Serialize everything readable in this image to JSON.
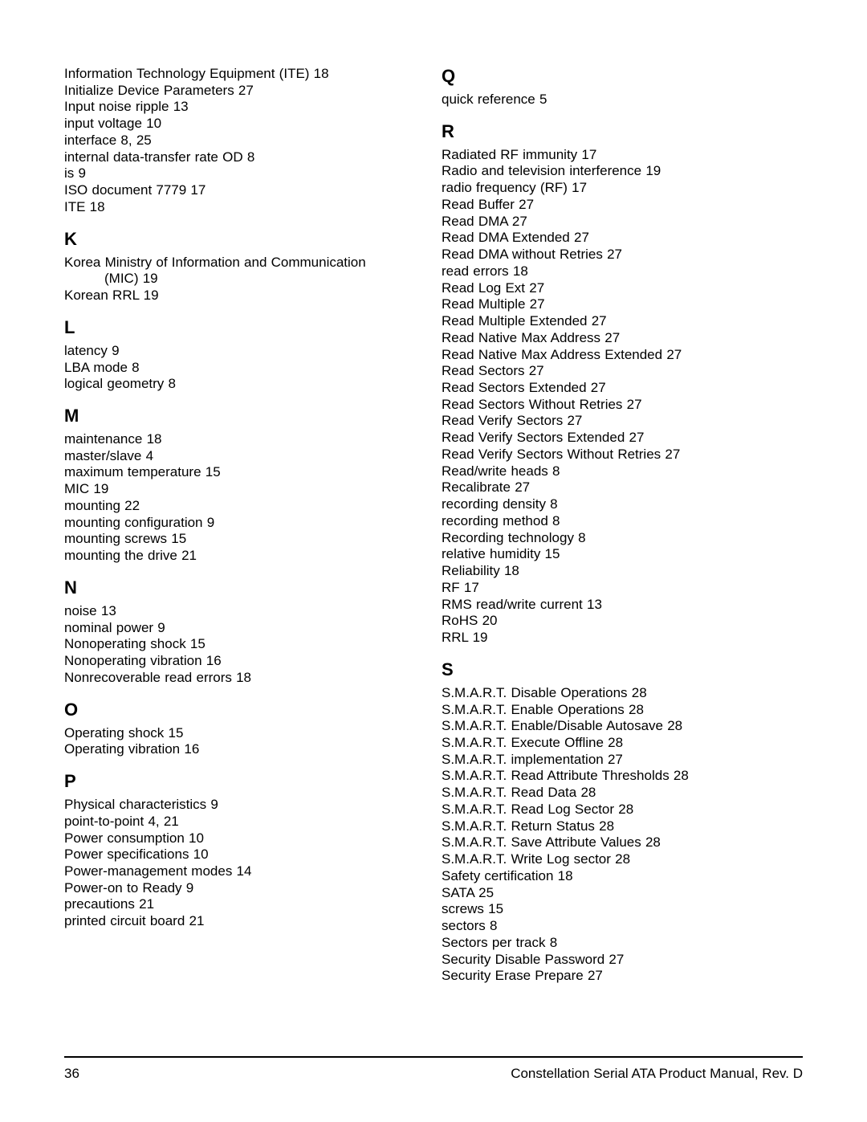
{
  "left": {
    "block_i": [
      {
        "text": "Information Technology Equipment (ITE)",
        "pages": "18"
      },
      {
        "text": "Initialize Device Parameters",
        "pages": "27"
      },
      {
        "text": "Input noise ripple",
        "pages": "13"
      },
      {
        "text": "input voltage",
        "pages": "10"
      },
      {
        "text": "interface",
        "pages": "8,  25"
      },
      {
        "text": "internal data-transfer rate OD",
        "pages": "8"
      },
      {
        "text": "is",
        "pages": "9"
      },
      {
        "text": "ISO document 7779",
        "pages": "17"
      },
      {
        "text": "ITE",
        "pages": "18"
      }
    ],
    "K": {
      "letter": "K",
      "entries": [
        {
          "text": "Korea  Ministry  of  Information  and  Communication"
        },
        {
          "text": "(MIC)   19",
          "hanging": true
        },
        {
          "text": "Korean RRL",
          "pages": "19"
        }
      ]
    },
    "L": {
      "letter": "L",
      "entries": [
        {
          "text": "latency",
          "pages": "9"
        },
        {
          "text": "LBA mode",
          "pages": "8"
        },
        {
          "text": "logical geometry",
          "pages": "8"
        }
      ]
    },
    "M": {
      "letter": "M",
      "entries": [
        {
          "text": "maintenance",
          "pages": "18"
        },
        {
          "text": "master/slave",
          "pages": "4"
        },
        {
          "text": "maximum temperature",
          "pages": "15"
        },
        {
          "text": "MIC",
          "pages": "19"
        },
        {
          "text": "mounting",
          "pages": "22"
        },
        {
          "text": "mounting configuration",
          "pages": "9"
        },
        {
          "text": "mounting screws",
          "pages": "15"
        },
        {
          "text": "mounting the drive",
          "pages": "21"
        }
      ]
    },
    "N": {
      "letter": "N",
      "entries": [
        {
          "text": "noise",
          "pages": "13"
        },
        {
          "text": "nominal power",
          "pages": "9"
        },
        {
          "text": "Nonoperating shock",
          "pages": "15"
        },
        {
          "text": "Nonoperating vibration",
          "pages": "16"
        },
        {
          "text": "Nonrecoverable read errors",
          "pages": "18"
        }
      ]
    },
    "O": {
      "letter": "O",
      "entries": [
        {
          "text": "Operating shock",
          "pages": "15"
        },
        {
          "text": "Operating vibration",
          "pages": "16"
        }
      ]
    },
    "P": {
      "letter": "P",
      "entries": [
        {
          "text": "Physical characteristics",
          "pages": "9"
        },
        {
          "text": "point-to-point",
          "pages": "4,  21"
        },
        {
          "text": "Power consumption",
          "pages": "10"
        },
        {
          "text": "Power specifications",
          "pages": "10"
        },
        {
          "text": "Power-management modes",
          "pages": "14"
        },
        {
          "text": "Power-on to Ready",
          "pages": "9"
        },
        {
          "text": "precautions",
          "pages": "21"
        },
        {
          "text": "printed circuit board",
          "pages": "21"
        }
      ]
    }
  },
  "right": {
    "Q": {
      "letter": "Q",
      "entries": [
        {
          "text": "quick reference",
          "pages": "5"
        }
      ]
    },
    "R": {
      "letter": "R",
      "entries": [
        {
          "text": "Radiated RF immunity",
          "pages": "17"
        },
        {
          "text": "Radio and television interference",
          "pages": "19"
        },
        {
          "text": "radio frequency (RF)",
          "pages": "17"
        },
        {
          "text": "Read Buffer",
          "pages": "27"
        },
        {
          "text": "Read DMA",
          "pages": "27"
        },
        {
          "text": "Read DMA Extended",
          "pages": "27"
        },
        {
          "text": "Read DMA without Retries",
          "pages": "27"
        },
        {
          "text": "read errors",
          "pages": "18"
        },
        {
          "text": "Read Log Ext",
          "pages": "27"
        },
        {
          "text": "Read Multiple",
          "pages": "27"
        },
        {
          "text": "Read Multiple Extended",
          "pages": "27"
        },
        {
          "text": "Read Native Max Address",
          "pages": "27"
        },
        {
          "text": "Read Native Max Address Extended",
          "pages": "27"
        },
        {
          "text": "Read Sectors",
          "pages": "27"
        },
        {
          "text": "Read Sectors Extended",
          "pages": "27"
        },
        {
          "text": "Read Sectors Without Retries",
          "pages": "27"
        },
        {
          "text": "Read Verify Sectors",
          "pages": "27"
        },
        {
          "text": "Read Verify Sectors Extended",
          "pages": "27"
        },
        {
          "text": "Read Verify Sectors Without Retries",
          "pages": "27"
        },
        {
          "text": "Read/write heads",
          "pages": "8"
        },
        {
          "text": "Recalibrate",
          "pages": "27"
        },
        {
          "text": "recording density",
          "pages": "8"
        },
        {
          "text": "recording method",
          "pages": "8"
        },
        {
          "text": "Recording technology",
          "pages": "8"
        },
        {
          "text": "relative humidity",
          "pages": "15"
        },
        {
          "text": "Reliability",
          "pages": "18"
        },
        {
          "text": "RF",
          "pages": "17"
        },
        {
          "text": "RMS read/write current",
          "pages": "13"
        },
        {
          "text": "RoHS",
          "pages": "20"
        },
        {
          "text": "RRL",
          "pages": "19"
        }
      ]
    },
    "S": {
      "letter": "S",
      "entries": [
        {
          "text": "S.M.A.R.T. Disable Operations",
          "pages": "28"
        },
        {
          "text": "S.M.A.R.T. Enable Operations",
          "pages": "28"
        },
        {
          "text": "S.M.A.R.T. Enable/Disable Autosave",
          "pages": "28"
        },
        {
          "text": "S.M.A.R.T. Execute Offline",
          "pages": "28"
        },
        {
          "text": "S.M.A.R.T. implementation",
          "pages": "27"
        },
        {
          "text": "S.M.A.R.T. Read Attribute Thresholds",
          "pages": "28"
        },
        {
          "text": "S.M.A.R.T. Read Data",
          "pages": "28"
        },
        {
          "text": "S.M.A.R.T. Read Log Sector",
          "pages": "28"
        },
        {
          "text": "S.M.A.R.T. Return Status",
          "pages": "28"
        },
        {
          "text": "S.M.A.R.T. Save Attribute Values",
          "pages": "28"
        },
        {
          "text": "S.M.A.R.T. Write Log sector",
          "pages": "28"
        },
        {
          "text": "Safety certification",
          "pages": "18"
        },
        {
          "text": "SATA",
          "pages": "25"
        },
        {
          "text": "screws",
          "pages": "15"
        },
        {
          "text": "sectors",
          "pages": "8"
        },
        {
          "text": "Sectors per track",
          "pages": "8"
        },
        {
          "text": "Security Disable Password",
          "pages": "27"
        },
        {
          "text": "Security Erase Prepare",
          "pages": "27"
        }
      ]
    }
  },
  "footer": {
    "page_num": "36",
    "doc_title": "Constellation Serial ATA Product Manual, Rev. D"
  }
}
